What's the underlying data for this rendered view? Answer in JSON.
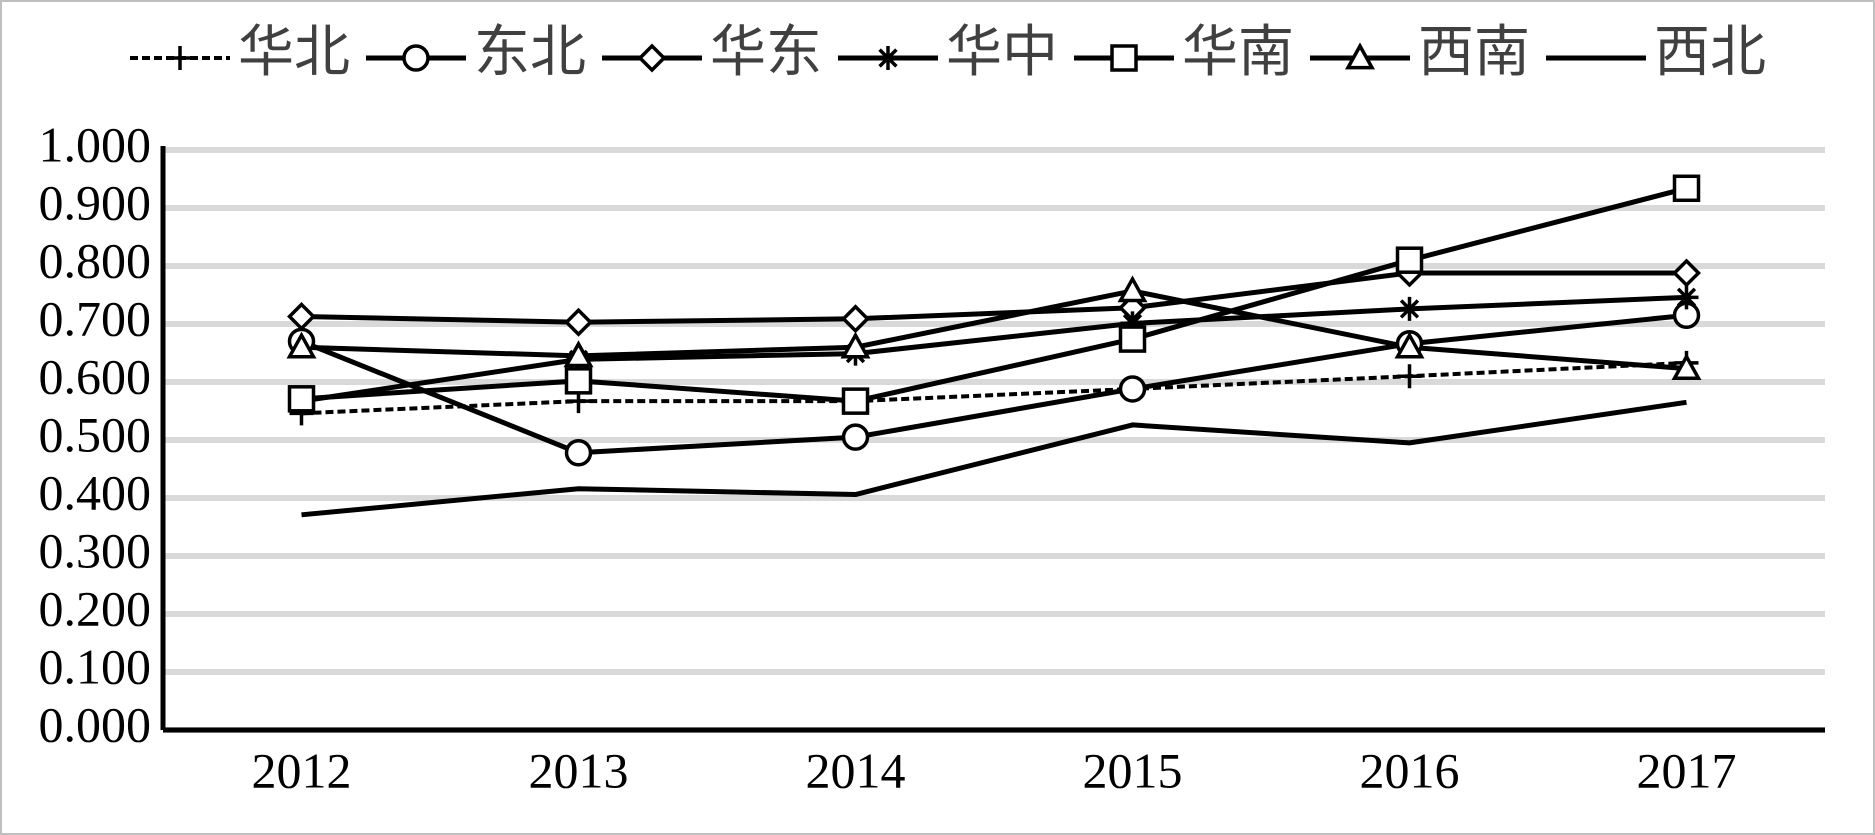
{
  "chart_data": {
    "type": "line",
    "categories": [
      "2012",
      "2013",
      "2014",
      "2015",
      "2016",
      "2017"
    ],
    "ylim": [
      0,
      1
    ],
    "yticks": [
      {
        "value": 0,
        "label": "0.000"
      },
      {
        "value": 0.1,
        "label": "0.100"
      },
      {
        "value": 0.2,
        "label": "0.200"
      },
      {
        "value": 0.3,
        "label": "0.300"
      },
      {
        "value": 0.4,
        "label": "0.400"
      },
      {
        "value": 0.5,
        "label": "0.500"
      },
      {
        "value": 0.6,
        "label": "0.600"
      },
      {
        "value": 0.7,
        "label": "0.700"
      },
      {
        "value": 0.8,
        "label": "0.800"
      },
      {
        "value": 0.9,
        "label": "0.900"
      },
      {
        "value": 1,
        "label": "1.000"
      }
    ],
    "grid": true,
    "legend": "top",
    "series": [
      {
        "name": "华北",
        "color": "#000000",
        "marker": "plus",
        "dashed": true,
        "values": [
          0.546,
          0.567,
          0.567,
          0.588,
          0.61,
          0.633
        ]
      },
      {
        "name": "东北",
        "color": "#000000",
        "marker": "circle",
        "values": [
          0.67,
          0.478,
          0.505,
          0.588,
          0.666,
          0.715
        ]
      },
      {
        "name": "华东",
        "color": "#000000",
        "marker": "diamond",
        "values": [
          0.713,
          0.703,
          0.709,
          0.728,
          0.788,
          0.788
        ]
      },
      {
        "name": "华中",
        "color": "#000000",
        "marker": "asterisk",
        "values": [
          0.567,
          0.639,
          0.649,
          0.701,
          0.726,
          0.746
        ]
      },
      {
        "name": "华南",
        "color": "#000000",
        "marker": "square",
        "values": [
          0.571,
          0.602,
          0.567,
          0.674,
          0.81,
          0.934
        ]
      },
      {
        "name": "西南",
        "color": "#000000",
        "marker": "triangle",
        "values": [
          0.66,
          0.645,
          0.66,
          0.757,
          0.66,
          0.623
        ]
      },
      {
        "name": "西北",
        "color": "#000000",
        "marker": "none",
        "values": [
          0.371,
          0.416,
          0.406,
          0.526,
          0.495,
          0.565
        ]
      }
    ]
  }
}
